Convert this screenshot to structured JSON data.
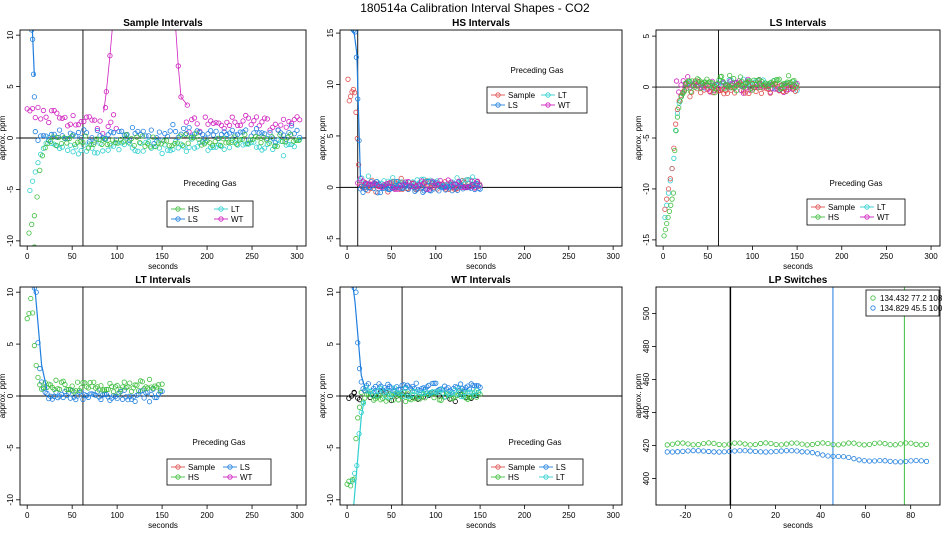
{
  "figure": {
    "title": "180514a   Calibration Interval Shapes - CO2",
    "colors": {
      "HS": "#3fbf3f",
      "LS": "#1f7fdf",
      "LT": "#2fcfcf",
      "WT": "#cf1fbf",
      "Sample": "#df4f4f",
      "black": "#000000"
    }
  },
  "chart_data": [
    {
      "id": "sample",
      "type": "scatter",
      "title": "Sample Intervals",
      "xlabel": "seconds",
      "ylabel": "approx. ppm",
      "xlim": [
        -8,
        310
      ],
      "ylim": [
        -10.5,
        10.5
      ],
      "xticks": [
        0,
        50,
        100,
        150,
        200,
        250,
        300
      ],
      "yticks": [
        -10,
        -5,
        0,
        5,
        10
      ],
      "vline": 62,
      "hline": 0,
      "legend": {
        "title": "Preceding Gas",
        "entries": [
          "HS",
          "LT",
          "LS",
          "WT"
        ],
        "columns": 2
      },
      "series": [
        {
          "name": "WT",
          "color": "WT",
          "gen": "sample_wt"
        },
        {
          "name": "LT",
          "color": "LT",
          "gen": "sample_lt"
        },
        {
          "name": "LS",
          "color": "LS",
          "gen": "sample_ls"
        },
        {
          "name": "HS",
          "color": "HS",
          "gen": "sample_hs"
        }
      ]
    },
    {
      "id": "hs",
      "type": "scatter",
      "title": "HS Intervals",
      "xlabel": "seconds",
      "ylabel": "approx. ppm",
      "xlim": [
        -8,
        310
      ],
      "ylim": [
        -5.7,
        15.3
      ],
      "xticks": [
        0,
        50,
        100,
        150,
        200,
        250,
        300
      ],
      "yticks": [
        -5,
        0,
        5,
        10,
        15
      ],
      "vline": 12,
      "hline": 0,
      "legend": {
        "title": "Preceding Gas",
        "entries": [
          "Sample",
          "LT",
          "LS",
          "WT"
        ],
        "columns": 2
      },
      "series": [
        {
          "name": "Sample",
          "color": "Sample",
          "gen": "hs_sample"
        },
        {
          "name": "LT",
          "color": "LT",
          "gen": "hs_lt"
        },
        {
          "name": "LS",
          "color": "LS",
          "gen": "hs_ls"
        },
        {
          "name": "WT",
          "color": "WT",
          "gen": "hs_wt"
        }
      ]
    },
    {
      "id": "ls",
      "type": "scatter",
      "title": "LS Intervals",
      "xlabel": "seconds",
      "ylabel": "approx. ppm",
      "xlim": [
        -8,
        310
      ],
      "ylim": [
        -15.6,
        5.6
      ],
      "xticks": [
        0,
        50,
        100,
        150,
        200,
        250,
        300
      ],
      "yticks": [
        -15,
        -10,
        -5,
        0,
        5
      ],
      "vline": 62,
      "hline": 0,
      "legend": {
        "title": "Preceding Gas",
        "entries": [
          "Sample",
          "LT",
          "HS",
          "WT"
        ],
        "columns": 2
      },
      "series": [
        {
          "name": "LT",
          "color": "LT",
          "gen": "ls_lt"
        },
        {
          "name": "WT",
          "color": "WT",
          "gen": "ls_wt"
        },
        {
          "name": "Sample",
          "color": "Sample",
          "gen": "ls_sample"
        },
        {
          "name": "HS",
          "color": "HS",
          "gen": "ls_hs"
        }
      ]
    },
    {
      "id": "lt",
      "type": "scatter",
      "title": "LT Intervals",
      "xlabel": "seconds",
      "ylabel": "approx. ppm",
      "xlim": [
        -8,
        310
      ],
      "ylim": [
        -10.5,
        10.5
      ],
      "xticks": [
        0,
        50,
        100,
        150,
        200,
        250,
        300
      ],
      "yticks": [
        -10,
        -5,
        0,
        5,
        10
      ],
      "vline": 62,
      "hline": 0,
      "legend": {
        "title": "Preceding Gas",
        "entries": [
          "Sample",
          "LS",
          "HS",
          "WT"
        ],
        "columns": 2
      },
      "series": [
        {
          "name": "LS",
          "color": "LS",
          "gen": "lt_ls"
        },
        {
          "name": "HS",
          "color": "HS",
          "gen": "lt_hs"
        }
      ]
    },
    {
      "id": "wt",
      "type": "scatter",
      "title": "WT Intervals",
      "xlabel": "seconds",
      "ylabel": "approx. ppm",
      "xlim": [
        -8,
        310
      ],
      "ylim": [
        -10.5,
        10.5
      ],
      "xticks": [
        0,
        50,
        100,
        150,
        200,
        250,
        300
      ],
      "yticks": [
        -10,
        -5,
        0,
        5,
        10
      ],
      "vline": 62,
      "hline": 0,
      "legend": {
        "title": "Preceding Gas",
        "entries": [
          "Sample",
          "LS",
          "HS",
          "LT"
        ],
        "columns": 2
      },
      "series": [
        {
          "name": "black",
          "color": "black",
          "gen": "wt_black"
        },
        {
          "name": "HS",
          "color": "HS",
          "gen": "wt_hs"
        },
        {
          "name": "LS",
          "color": "LS",
          "gen": "wt_ls"
        },
        {
          "name": "LT",
          "color": "LT",
          "gen": "wt_lt"
        }
      ]
    },
    {
      "id": "lp",
      "type": "scatter",
      "title": "LP Switches",
      "xlabel": "seconds",
      "ylabel": "approx. ppm",
      "xlim": [
        -33,
        93
      ],
      "ylim": [
        384,
        516
      ],
      "xticks": [
        -20,
        0,
        20,
        40,
        60,
        80
      ],
      "yticks": [
        400,
        420,
        440,
        460,
        480,
        500
      ],
      "vline": 0,
      "vlines": [
        {
          "x": 45.5,
          "color": "LS"
        },
        {
          "x": 77.2,
          "color": "HS"
        }
      ],
      "legend": {
        "position": "top-right",
        "entries": [
          "134.432 77.2 108",
          "134.829 45.5 100"
        ],
        "entry_colors": [
          "HS",
          "LS"
        ],
        "columns": 1
      },
      "series": [
        {
          "name": "134.432 77.2 108",
          "color": "HS",
          "gen": "lp_green"
        },
        {
          "name": "134.829 45.5 100",
          "color": "LS",
          "gen": "lp_blue"
        }
      ]
    }
  ]
}
